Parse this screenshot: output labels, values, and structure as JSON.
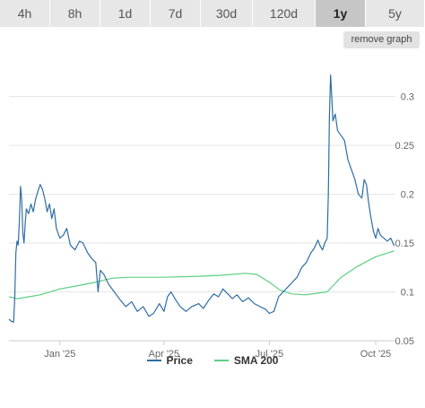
{
  "range_tabs": [
    "4h",
    "8h",
    "1d",
    "7d",
    "30d",
    "120d",
    "1y",
    "5y"
  ],
  "active_tab": "1y",
  "remove_graph_label": "remove graph",
  "colors": {
    "price": "#2f6da3",
    "sma": "#5ccf82",
    "grid": "#e6e6e6",
    "axis_text": "#666666"
  },
  "chart_data": {
    "type": "line",
    "title": "",
    "xlabel": "",
    "ylabel": "",
    "grid": "horizontal",
    "legend_position": "bottom",
    "ylim": [
      0.05,
      0.34
    ],
    "xlim": [
      "2024-11-18",
      "2025-10-18"
    ],
    "y_ticks": [
      0.05,
      0.1,
      0.15,
      0.2,
      0.25,
      0.3
    ],
    "y_tick_labels": [
      "0.05",
      "0.1",
      "0.15",
      "0.2",
      "0.25",
      "0.3"
    ],
    "x_ticks": [
      {
        "date": "2025-01-01",
        "label": "Jan '25"
      },
      {
        "date": "2025-04-01",
        "label": "Apr '25"
      },
      {
        "date": "2025-07-01",
        "label": "Jul '25"
      },
      {
        "date": "2025-10-01",
        "label": "Oct '25"
      }
    ],
    "series": [
      {
        "name": "Price",
        "points": [
          [
            "2024-11-18",
            0.072
          ],
          [
            "2024-11-20",
            0.07
          ],
          [
            "2024-11-22",
            0.069
          ],
          [
            "2024-11-23",
            0.095
          ],
          [
            "2024-11-24",
            0.14
          ],
          [
            "2024-11-25",
            0.152
          ],
          [
            "2024-11-26",
            0.148
          ],
          [
            "2024-11-27",
            0.172
          ],
          [
            "2024-11-28",
            0.208
          ],
          [
            "2024-11-29",
            0.195
          ],
          [
            "2024-11-30",
            0.16
          ],
          [
            "2024-12-01",
            0.15
          ],
          [
            "2024-12-02",
            0.17
          ],
          [
            "2024-12-03",
            0.185
          ],
          [
            "2024-12-05",
            0.18
          ],
          [
            "2024-12-07",
            0.19
          ],
          [
            "2024-12-09",
            0.182
          ],
          [
            "2024-12-11",
            0.195
          ],
          [
            "2024-12-13",
            0.203
          ],
          [
            "2024-12-15",
            0.21
          ],
          [
            "2024-12-17",
            0.205
          ],
          [
            "2024-12-19",
            0.195
          ],
          [
            "2024-12-21",
            0.182
          ],
          [
            "2024-12-23",
            0.19
          ],
          [
            "2024-12-25",
            0.175
          ],
          [
            "2024-12-27",
            0.185
          ],
          [
            "2024-12-29",
            0.165
          ],
          [
            "2025-01-01",
            0.155
          ],
          [
            "2025-01-04",
            0.158
          ],
          [
            "2025-01-07",
            0.165
          ],
          [
            "2025-01-10",
            0.148
          ],
          [
            "2025-01-14",
            0.143
          ],
          [
            "2025-01-18",
            0.152
          ],
          [
            "2025-01-21",
            0.15
          ],
          [
            "2025-01-25",
            0.14
          ],
          [
            "2025-01-28",
            0.135
          ],
          [
            "2025-02-01",
            0.13
          ],
          [
            "2025-02-03",
            0.1
          ],
          [
            "2025-02-05",
            0.122
          ],
          [
            "2025-02-08",
            0.118
          ],
          [
            "2025-02-12",
            0.108
          ],
          [
            "2025-02-17",
            0.1
          ],
          [
            "2025-02-22",
            0.092
          ],
          [
            "2025-02-27",
            0.085
          ],
          [
            "2025-03-04",
            0.09
          ],
          [
            "2025-03-09",
            0.08
          ],
          [
            "2025-03-14",
            0.085
          ],
          [
            "2025-03-19",
            0.075
          ],
          [
            "2025-03-23",
            0.078
          ],
          [
            "2025-03-28",
            0.088
          ],
          [
            "2025-04-01",
            0.08
          ],
          [
            "2025-04-04",
            0.095
          ],
          [
            "2025-04-07",
            0.1
          ],
          [
            "2025-04-11",
            0.092
          ],
          [
            "2025-04-15",
            0.085
          ],
          [
            "2025-04-20",
            0.08
          ],
          [
            "2025-04-25",
            0.085
          ],
          [
            "2025-05-01",
            0.088
          ],
          [
            "2025-05-05",
            0.083
          ],
          [
            "2025-05-10",
            0.092
          ],
          [
            "2025-05-14",
            0.098
          ],
          [
            "2025-05-18",
            0.095
          ],
          [
            "2025-05-22",
            0.103
          ],
          [
            "2025-05-26",
            0.098
          ],
          [
            "2025-05-30",
            0.093
          ],
          [
            "2025-06-03",
            0.097
          ],
          [
            "2025-06-08",
            0.09
          ],
          [
            "2025-06-13",
            0.094
          ],
          [
            "2025-06-18",
            0.088
          ],
          [
            "2025-06-23",
            0.085
          ],
          [
            "2025-06-28",
            0.082
          ],
          [
            "2025-07-01",
            0.078
          ],
          [
            "2025-07-05",
            0.08
          ],
          [
            "2025-07-09",
            0.095
          ],
          [
            "2025-07-13",
            0.1
          ],
          [
            "2025-07-17",
            0.105
          ],
          [
            "2025-07-21",
            0.11
          ],
          [
            "2025-07-25",
            0.115
          ],
          [
            "2025-07-29",
            0.125
          ],
          [
            "2025-08-02",
            0.13
          ],
          [
            "2025-08-06",
            0.14
          ],
          [
            "2025-08-09",
            0.145
          ],
          [
            "2025-08-12",
            0.153
          ],
          [
            "2025-08-14",
            0.147
          ],
          [
            "2025-08-16",
            0.143
          ],
          [
            "2025-08-18",
            0.15
          ],
          [
            "2025-08-20",
            0.155
          ],
          [
            "2025-08-21",
            0.2
          ],
          [
            "2025-08-22",
            0.28
          ],
          [
            "2025-08-23",
            0.322
          ],
          [
            "2025-08-24",
            0.3
          ],
          [
            "2025-08-25",
            0.275
          ],
          [
            "2025-08-27",
            0.282
          ],
          [
            "2025-08-29",
            0.265
          ],
          [
            "2025-09-01",
            0.26
          ],
          [
            "2025-09-04",
            0.255
          ],
          [
            "2025-09-07",
            0.235
          ],
          [
            "2025-09-10",
            0.225
          ],
          [
            "2025-09-13",
            0.215
          ],
          [
            "2025-09-16",
            0.2
          ],
          [
            "2025-09-19",
            0.196
          ],
          [
            "2025-09-21",
            0.215
          ],
          [
            "2025-09-23",
            0.21
          ],
          [
            "2025-09-25",
            0.19
          ],
          [
            "2025-09-27",
            0.175
          ],
          [
            "2025-09-29",
            0.162
          ],
          [
            "2025-10-01",
            0.155
          ],
          [
            "2025-10-03",
            0.165
          ],
          [
            "2025-10-05",
            0.158
          ],
          [
            "2025-10-08",
            0.155
          ],
          [
            "2025-10-11",
            0.152
          ],
          [
            "2025-10-14",
            0.155
          ],
          [
            "2025-10-17",
            0.147
          ]
        ]
      },
      {
        "name": "SMA 200",
        "points": [
          [
            "2024-11-18",
            0.095
          ],
          [
            "2024-11-25",
            0.093
          ],
          [
            "2024-12-05",
            0.095
          ],
          [
            "2024-12-15",
            0.097
          ],
          [
            "2025-01-01",
            0.103
          ],
          [
            "2025-01-15",
            0.106
          ],
          [
            "2025-02-01",
            0.11
          ],
          [
            "2025-02-15",
            0.114
          ],
          [
            "2025-03-01",
            0.115
          ],
          [
            "2025-04-01",
            0.115
          ],
          [
            "2025-05-01",
            0.116
          ],
          [
            "2025-05-20",
            0.117
          ],
          [
            "2025-06-10",
            0.119
          ],
          [
            "2025-06-20",
            0.118
          ],
          [
            "2025-07-01",
            0.11
          ],
          [
            "2025-07-10",
            0.102
          ],
          [
            "2025-07-20",
            0.098
          ],
          [
            "2025-08-01",
            0.097
          ],
          [
            "2025-08-20",
            0.1
          ],
          [
            "2025-09-01",
            0.115
          ],
          [
            "2025-09-15",
            0.126
          ],
          [
            "2025-10-01",
            0.136
          ],
          [
            "2025-10-17",
            0.142
          ]
        ]
      }
    ]
  }
}
